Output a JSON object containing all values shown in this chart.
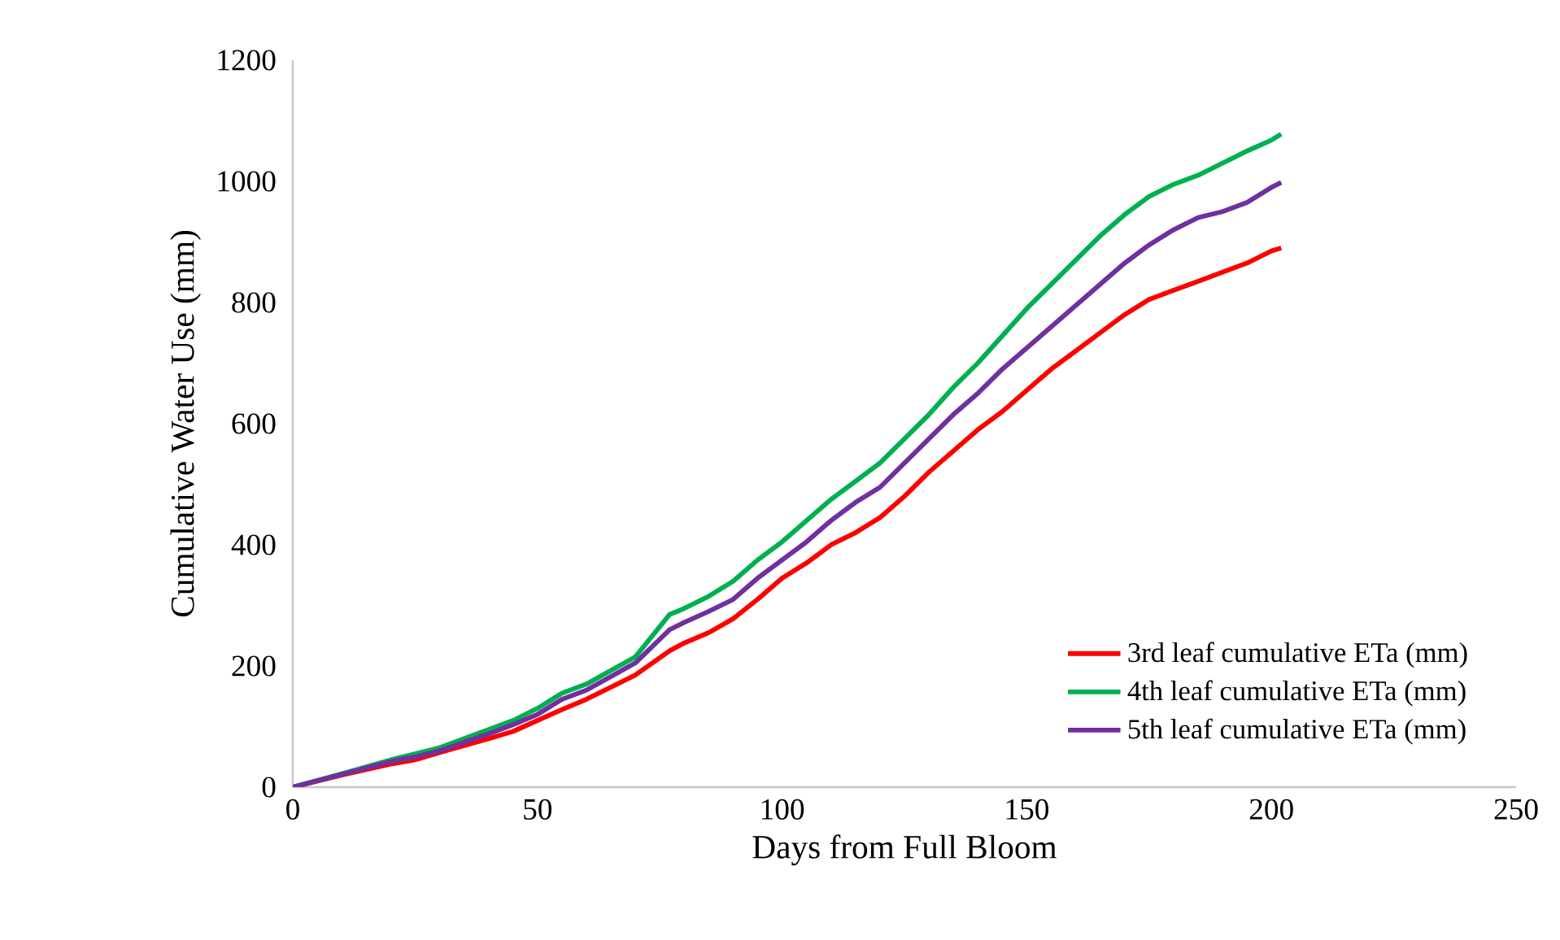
{
  "chart_data": {
    "type": "line",
    "xlabel": "Days from Full Bloom",
    "ylabel": "Cumulative Water Use (mm)",
    "xlim": [
      0,
      250
    ],
    "xticks": [
      0,
      50,
      100,
      150,
      200,
      250
    ],
    "ylim": [
      0,
      1200
    ],
    "yticks": [
      0,
      200,
      400,
      600,
      800,
      1000,
      1200
    ],
    "legend": "bottom right",
    "grid": false,
    "marker": "none",
    "line_style": "solid",
    "series": [
      {
        "name": "3rd leaf cumulative ETa (mm)",
        "color": "#ff0000",
        "x": [
          0,
          10,
          20,
          25,
          30,
          40,
          45,
          50,
          55,
          60,
          70,
          77,
          80,
          85,
          90,
          95,
          100,
          105,
          110,
          115,
          120,
          125,
          130,
          135,
          140,
          145,
          150,
          155,
          160,
          165,
          170,
          175,
          180,
          185,
          190,
          195,
          200,
          202
        ],
        "values": [
          0,
          20,
          38,
          45,
          57,
          80,
          92,
          110,
          128,
          145,
          185,
          225,
          238,
          255,
          278,
          310,
          345,
          370,
          400,
          420,
          445,
          480,
          520,
          555,
          590,
          620,
          655,
          690,
          720,
          750,
          780,
          805,
          820,
          835,
          850,
          865,
          885,
          890
        ]
      },
      {
        "name": "4th leaf cumulative ETa (mm)",
        "color": "#00b050",
        "x": [
          0,
          10,
          20,
          25,
          30,
          40,
          45,
          50,
          55,
          60,
          70,
          77,
          80,
          85,
          90,
          95,
          100,
          105,
          110,
          115,
          120,
          125,
          130,
          135,
          140,
          145,
          150,
          155,
          160,
          165,
          170,
          175,
          180,
          185,
          190,
          195,
          200,
          202
        ],
        "values": [
          0,
          22,
          45,
          55,
          65,
          95,
          110,
          130,
          155,
          170,
          215,
          285,
          295,
          315,
          340,
          375,
          405,
          440,
          475,
          505,
          535,
          575,
          615,
          660,
          700,
          745,
          790,
          830,
          870,
          910,
          945,
          975,
          995,
          1010,
          1030,
          1050,
          1068,
          1078
        ]
      },
      {
        "name": "5th leaf cumulative ETa (mm)",
        "color": "#7030a0",
        "x": [
          0,
          10,
          20,
          25,
          30,
          40,
          45,
          50,
          55,
          60,
          70,
          77,
          80,
          85,
          90,
          95,
          100,
          105,
          110,
          115,
          120,
          125,
          130,
          135,
          140,
          145,
          150,
          155,
          160,
          165,
          170,
          175,
          180,
          185,
          190,
          195,
          200,
          202
        ],
        "values": [
          0,
          21,
          42,
          50,
          60,
          88,
          103,
          120,
          145,
          160,
          205,
          260,
          272,
          290,
          310,
          345,
          375,
          405,
          440,
          470,
          495,
          535,
          575,
          615,
          650,
          690,
          725,
          760,
          795,
          830,
          865,
          895,
          920,
          940,
          950,
          965,
          990,
          998
        ]
      }
    ]
  }
}
